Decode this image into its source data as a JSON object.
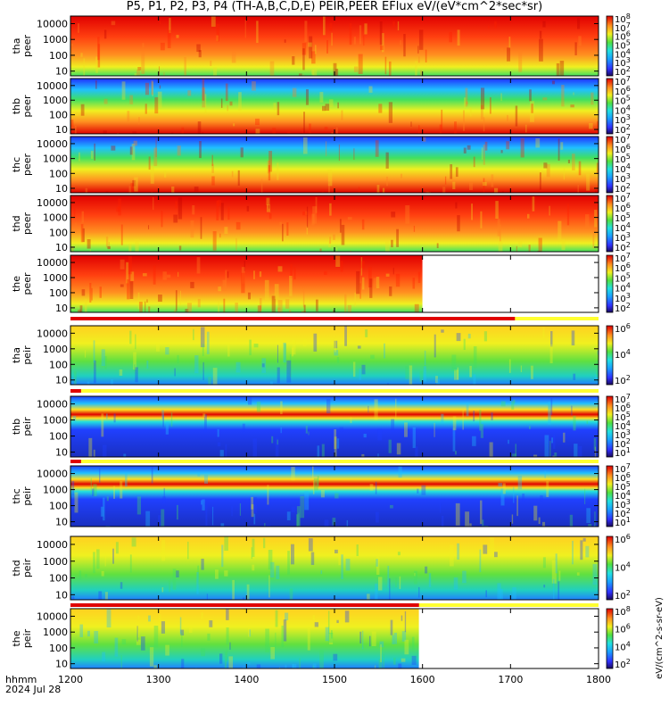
{
  "chart_data": {
    "type": "heatmap",
    "title": "P5, P1, P2, P3, P4 (TH-A,B,C,D,E) PEIR,PEER EFlux eV/(eV*cm^2*sec*sr)",
    "x_ticks": [
      "1200",
      "1300",
      "1400",
      "1500",
      "1600",
      "1700",
      "1800"
    ],
    "x_range": [
      1200,
      1800
    ],
    "footer_label": "hhmm",
    "date": "2024 Jul 28",
    "y_ticks": [
      "10000",
      "1000",
      "100",
      "10"
    ],
    "y_range": [
      5,
      30000
    ],
    "y_scale": "log",
    "colorbar_label": "eV/(cm^2-s-sr-eV)",
    "panels": [
      {
        "probe": "tha",
        "species": "peer",
        "data_end": 1800,
        "cb_ticks": [
          "10^8",
          "10^7",
          "10^6",
          "10^5",
          "10^4",
          "10^3",
          "10^2"
        ]
      },
      {
        "probe": "thb",
        "species": "peer",
        "data_end": 1800,
        "cb_ticks": [
          "10^7",
          "10^6",
          "10^5",
          "10^4",
          "10^3",
          "10^2"
        ]
      },
      {
        "probe": "thc",
        "species": "peer",
        "data_end": 1800,
        "cb_ticks": [
          "10^7",
          "10^6",
          "10^5",
          "10^4",
          "10^3",
          "10^2"
        ]
      },
      {
        "probe": "thd",
        "species": "peer",
        "data_end": 1800,
        "cb_ticks": [
          "10^7",
          "10^6",
          "10^5",
          "10^4",
          "10^3",
          "10^2"
        ]
      },
      {
        "probe": "the",
        "species": "peer",
        "data_end": 1600,
        "cb_ticks": [
          "10^7",
          "10^6",
          "10^5",
          "10^4",
          "10^3",
          "10^2"
        ]
      },
      {
        "probe": "tha",
        "species": "peir",
        "data_end": 1800,
        "cb_ticks": [
          "10^6",
          "10^4",
          "10^2"
        ]
      },
      {
        "probe": "thb",
        "species": "peir",
        "data_end": 1800,
        "cb_ticks": [
          "10^7",
          "10^6",
          "10^5",
          "10^4",
          "10^3",
          "10^2",
          "10^1"
        ]
      },
      {
        "probe": "thc",
        "species": "peir",
        "data_end": 1800,
        "cb_ticks": [
          "10^7",
          "10^6",
          "10^5",
          "10^4",
          "10^3",
          "10^2",
          "10^1"
        ]
      },
      {
        "probe": "thd",
        "species": "peir",
        "data_end": 1800,
        "cb_ticks": [
          "10^6",
          "10^4",
          "10^2"
        ]
      },
      {
        "probe": "the",
        "species": "peir",
        "data_end": 1596,
        "cb_ticks": [
          "10^8",
          "10^6",
          "10^4",
          "10^2"
        ]
      }
    ]
  }
}
